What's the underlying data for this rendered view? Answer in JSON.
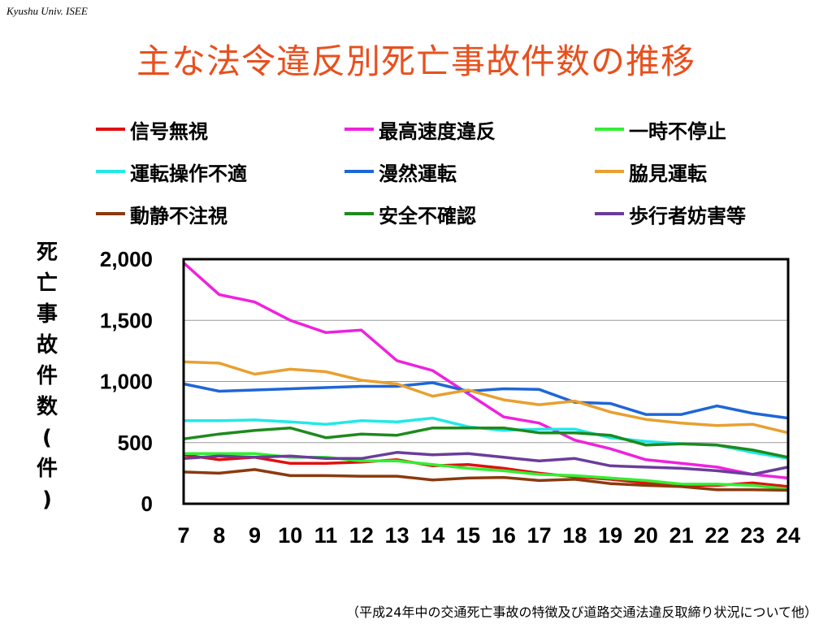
{
  "header": {
    "watermark": "Kyushu Univ. ISEE"
  },
  "title": "主な法令違反別死亡事故件数の推移",
  "ylabel_chars": [
    "死",
    "亡",
    "事",
    "故",
    "件",
    "数",
    "(",
    "件",
    ")"
  ],
  "source": "（平成24年中の交通死亡事故の特徴及び道路交通法違反取締り状況について他）",
  "colors": {
    "shinngo": "#e01010",
    "speed": "#ee22dd",
    "ichiji": "#33ee33",
    "unten": "#22e8e8",
    "manzen": "#1f66d6",
    "wakimi": "#e8a030",
    "dousei": "#8b3a0e",
    "anzen": "#1d8a1d",
    "hokou": "#6a3d9a"
  },
  "chart_data": {
    "type": "line",
    "x": [
      7,
      8,
      9,
      10,
      11,
      12,
      13,
      14,
      15,
      16,
      17,
      18,
      19,
      20,
      21,
      22,
      23,
      24
    ],
    "ylim": [
      0,
      2000
    ],
    "yticks": [
      0,
      500,
      1000,
      1500,
      2000
    ],
    "ytick_labels": [
      "0",
      "500",
      "1,000",
      "1,500",
      "2,000"
    ],
    "grid": true,
    "series": [
      {
        "name": "信号無視",
        "color": "#e01010",
        "values": [
          400,
          360,
          380,
          330,
          330,
          340,
          360,
          310,
          320,
          290,
          250,
          220,
          200,
          170,
          150,
          150,
          170,
          140
        ]
      },
      {
        "name": "最高速度違反",
        "color": "#ee22dd",
        "values": [
          1970,
          1710,
          1650,
          1500,
          1400,
          1420,
          1170,
          1090,
          900,
          710,
          660,
          520,
          450,
          360,
          330,
          300,
          240,
          210
        ]
      },
      {
        "name": "一時不停止",
        "color": "#33ee33",
        "values": [
          410,
          410,
          410,
          380,
          380,
          350,
          350,
          320,
          290,
          270,
          240,
          230,
          210,
          190,
          160,
          160,
          150,
          120
        ]
      },
      {
        "name": "運転操作不適",
        "color": "#22e8e8",
        "values": [
          680,
          680,
          685,
          670,
          650,
          680,
          670,
          700,
          630,
          600,
          610,
          610,
          540,
          510,
          490,
          480,
          420,
          370
        ]
      },
      {
        "name": "漫然運転",
        "color": "#1f66d6",
        "values": [
          980,
          920,
          930,
          940,
          950,
          960,
          960,
          990,
          920,
          940,
          935,
          830,
          820,
          730,
          730,
          800,
          740,
          700
        ]
      },
      {
        "name": "脇見運転",
        "color": "#e8a030",
        "values": [
          1160,
          1150,
          1060,
          1100,
          1080,
          1010,
          980,
          880,
          930,
          850,
          810,
          840,
          750,
          690,
          660,
          640,
          650,
          580
        ]
      },
      {
        "name": "動静不注視",
        "color": "#8b3a0e",
        "values": [
          260,
          250,
          280,
          230,
          230,
          225,
          225,
          195,
          210,
          215,
          190,
          200,
          165,
          150,
          140,
          115,
          115,
          110
        ]
      },
      {
        "name": "安全不確認",
        "color": "#1d8a1d",
        "values": [
          530,
          570,
          600,
          620,
          540,
          570,
          560,
          620,
          620,
          620,
          580,
          580,
          560,
          480,
          490,
          480,
          440,
          380
        ]
      },
      {
        "name": "歩行者妨害等",
        "color": "#6a3d9a",
        "values": [
          370,
          390,
          380,
          390,
          370,
          370,
          420,
          400,
          410,
          380,
          350,
          370,
          310,
          300,
          290,
          270,
          240,
          300
        ]
      }
    ]
  }
}
